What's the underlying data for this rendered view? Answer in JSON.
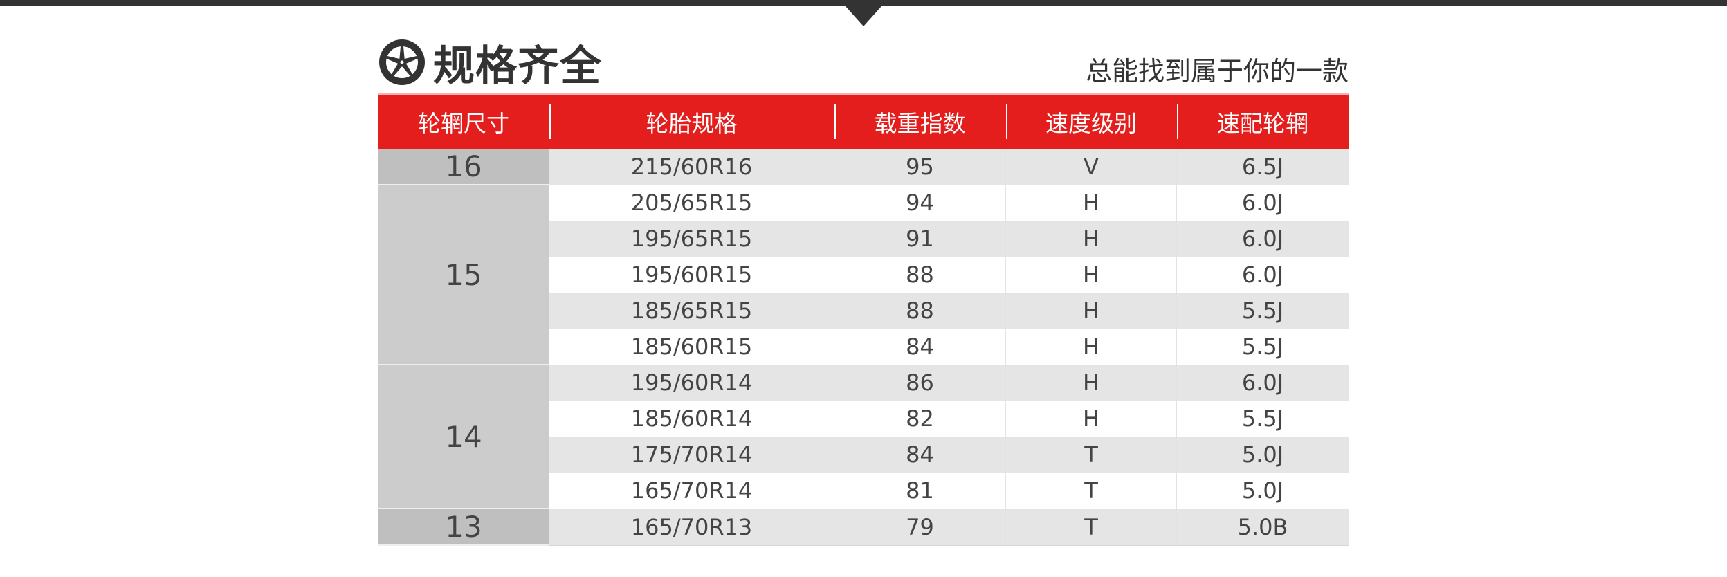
{
  "title": "规格齐全",
  "title_icon": "wheel-icon",
  "slogan": "总能找到属于你的一款",
  "colors": {
    "header": "#e31e1c",
    "dark": "#333333"
  },
  "columns": [
    "轮辋尺寸",
    "轮胎规格",
    "载重指数",
    "速度级别",
    "速配轮辋"
  ],
  "groups": [
    {
      "size": "16",
      "rows": [
        [
          "215/60R16",
          "95",
          "V",
          "6.5J"
        ]
      ]
    },
    {
      "size": "15",
      "rows": [
        [
          "205/65R15",
          "94",
          "H",
          "6.0J"
        ],
        [
          "195/65R15",
          "91",
          "H",
          "6.0J"
        ],
        [
          "195/60R15",
          "88",
          "H",
          "6.0J"
        ],
        [
          "185/65R15",
          "88",
          "H",
          "5.5J"
        ],
        [
          "185/60R15",
          "84",
          "H",
          "5.5J"
        ]
      ]
    },
    {
      "size": "14",
      "rows": [
        [
          "195/60R14",
          "86",
          "H",
          "6.0J"
        ],
        [
          "185/60R14",
          "82",
          "H",
          "5.5J"
        ],
        [
          "175/70R14",
          "84",
          "T",
          "5.0J"
        ],
        [
          "165/70R14",
          "81",
          "T",
          "5.0J"
        ]
      ]
    },
    {
      "size": "13",
      "rows": [
        [
          "165/70R13",
          "79",
          "T",
          "5.0B"
        ]
      ]
    }
  ]
}
